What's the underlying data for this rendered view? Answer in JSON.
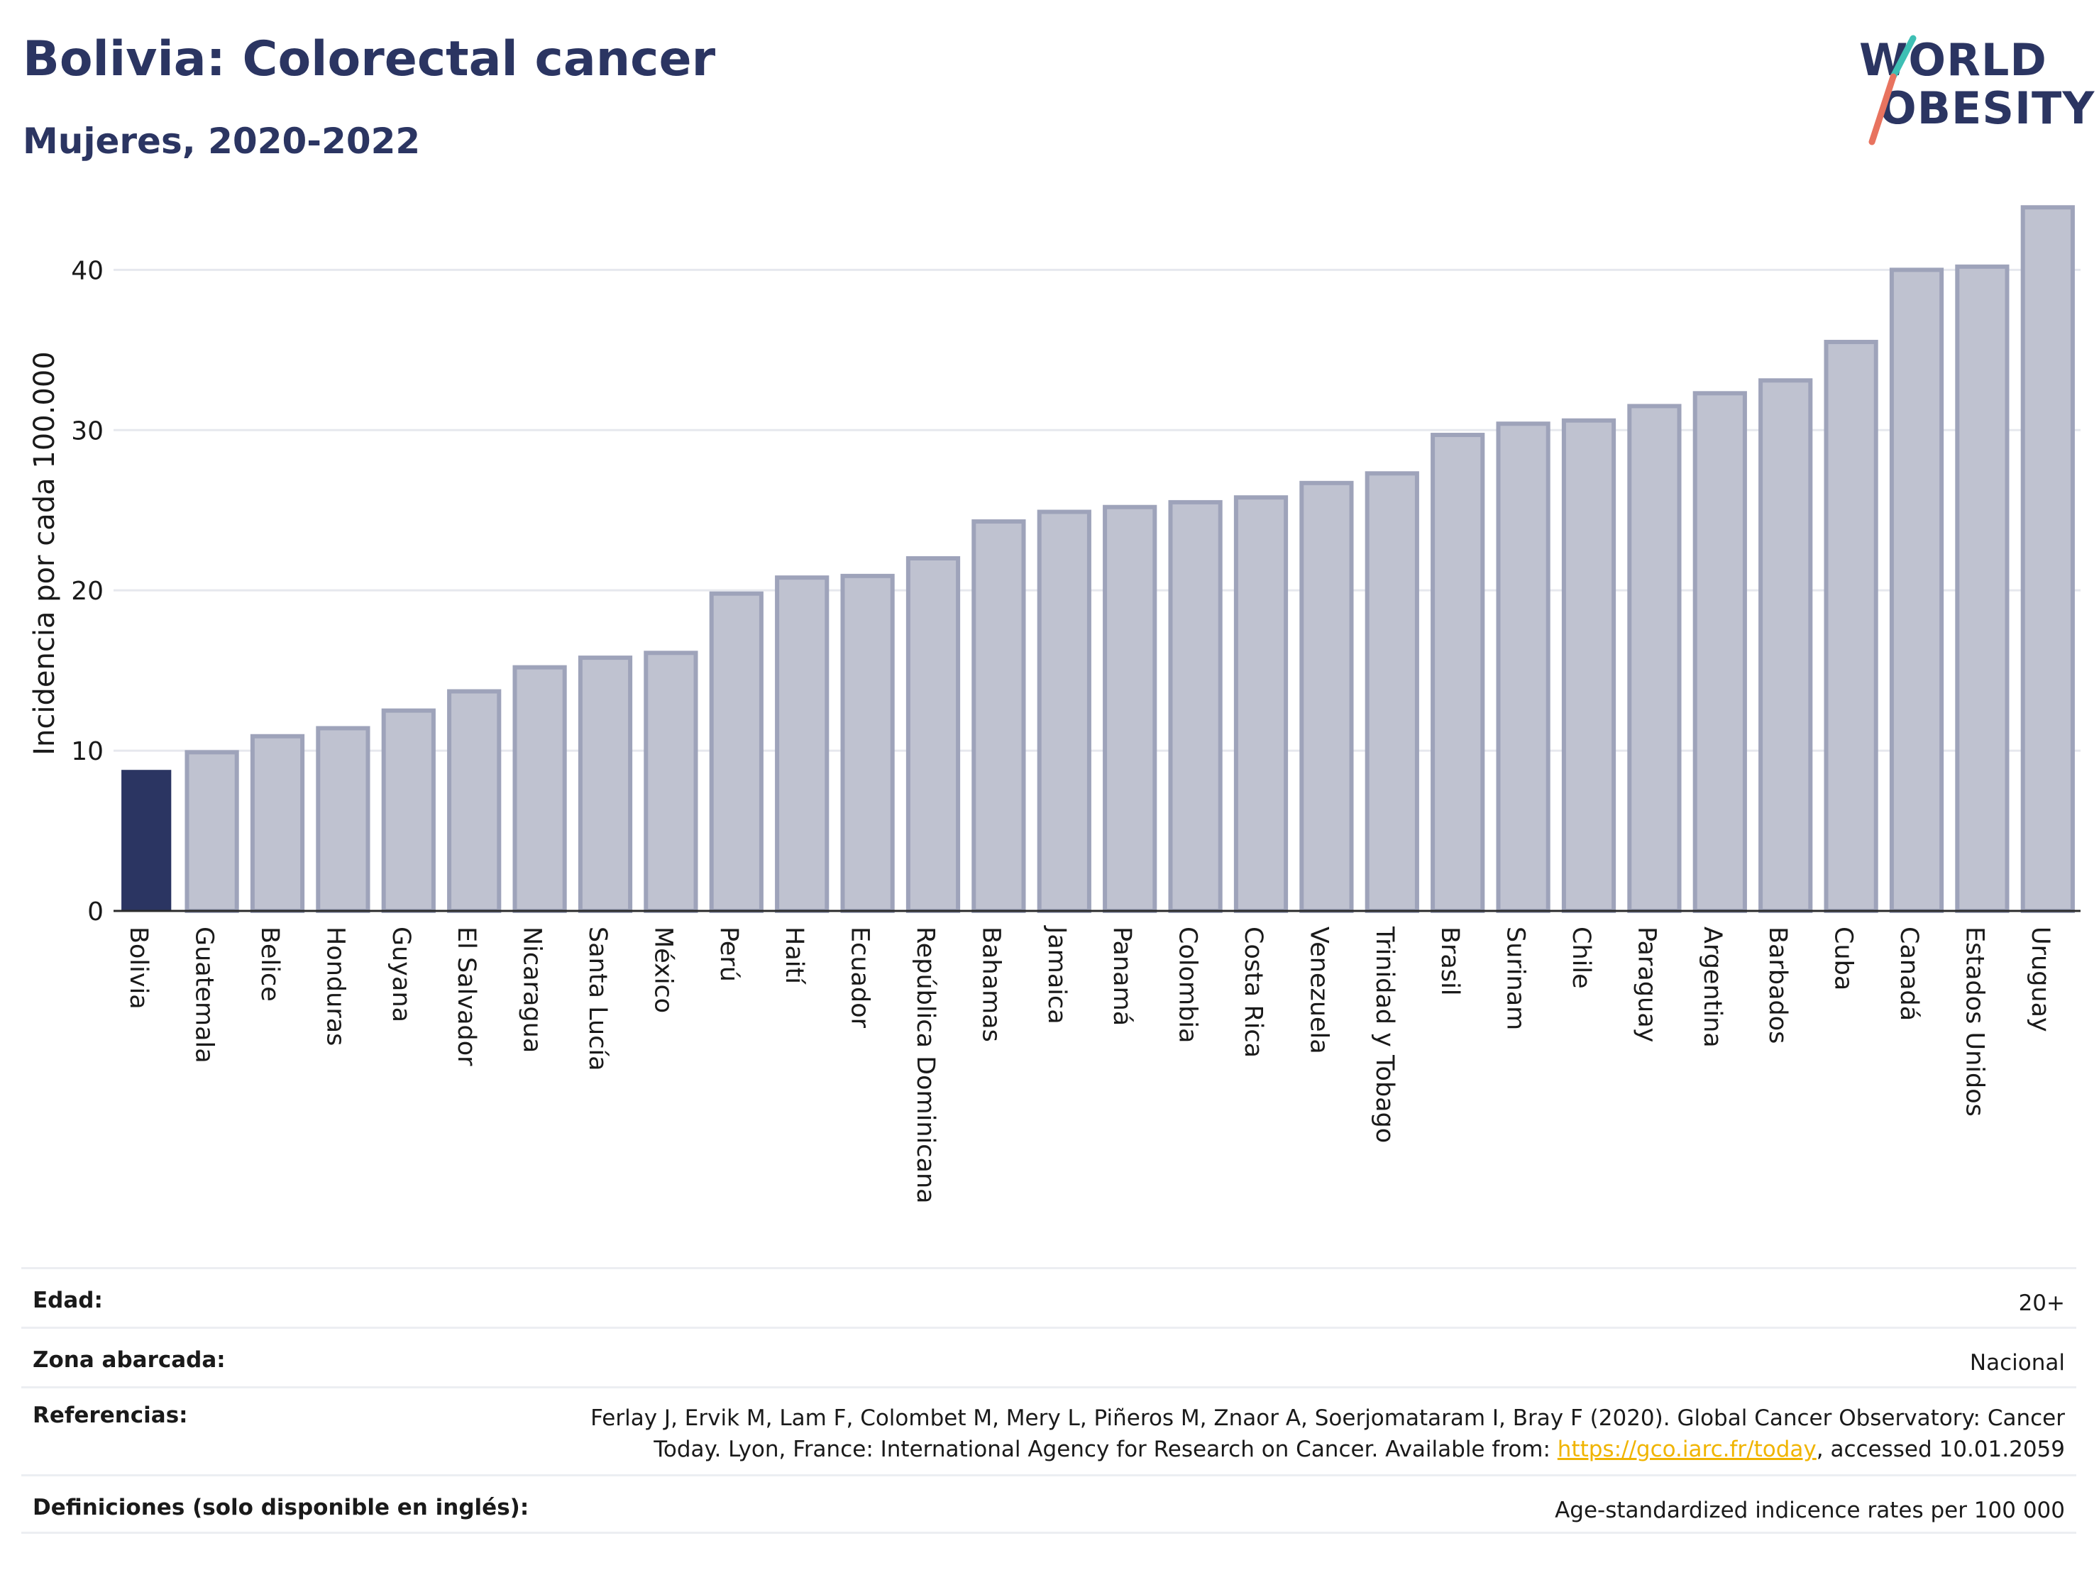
{
  "header": {
    "title": "Bolivia: Colorectal cancer",
    "subtitle": "Mujeres, 2020-2022"
  },
  "logo": {
    "line1": "WORLD",
    "line2": "OBESITY"
  },
  "colors": {
    "highlight": "#2b3562",
    "bar_fill": "#bfc2d0",
    "bar_stroke": "#9ea3ba",
    "grid": "#e6e8ee",
    "text": "#2b3562",
    "link": "#f0b400",
    "logo_teal": "#3ebfb4",
    "logo_coral": "#e8735f"
  },
  "chart_data": {
    "type": "bar",
    "ylabel": "Incidencia por cada 100.000",
    "xlabel": "",
    "ylim": [
      0,
      44
    ],
    "yticks": [
      0,
      10,
      20,
      30,
      40
    ],
    "grid": true,
    "highlight_category": "Bolivia",
    "categories": [
      "Bolivia",
      "Guatemala",
      "Belice",
      "Honduras",
      "Guyana",
      "El Salvador",
      "Nicaragua",
      "Santa Lucía",
      "México",
      "Perú",
      "Haití",
      "Ecuador",
      "República Dominicana",
      "Bahamas",
      "Jamaica",
      "Panamá",
      "Colombia",
      "Costa Rica",
      "Venezuela",
      "Trinidad y Tobago",
      "Brasil",
      "Surinam",
      "Chile",
      "Paraguay",
      "Argentina",
      "Barbados",
      "Cuba",
      "Canadá",
      "Estados Unidos",
      "Uruguay"
    ],
    "values": [
      8.8,
      9.9,
      10.9,
      11.4,
      12.5,
      13.7,
      15.2,
      15.8,
      16.1,
      19.8,
      20.8,
      20.9,
      22.0,
      24.3,
      24.9,
      25.2,
      25.5,
      25.8,
      26.7,
      27.3,
      29.7,
      30.4,
      30.6,
      31.5,
      32.3,
      33.1,
      35.5,
      40.0,
      40.2,
      43.9
    ]
  },
  "info": {
    "edad_label": "Edad:",
    "edad_value": "20+",
    "zona_label": "Zona abarcada:",
    "zona_value": "Nacional",
    "ref_label": "Referencias:",
    "ref_text_1": "Ferlay J, Ervik M, Lam F, Colombet M, Mery L, Piñeros M, Znaor A, Soerjomataram I, Bray F (2020). Global Cancer Observatory: Cancer",
    "ref_text_2": "Today. Lyon, France: International Agency for Research on Cancer. Available from: ",
    "ref_link": "https://gco.iarc.fr/today",
    "ref_text_3": ", accessed 10.01.2059",
    "def_label": "Definiciones (solo disponible en inglés):",
    "def_value": "Age-standardized indicence rates per 100 000"
  }
}
